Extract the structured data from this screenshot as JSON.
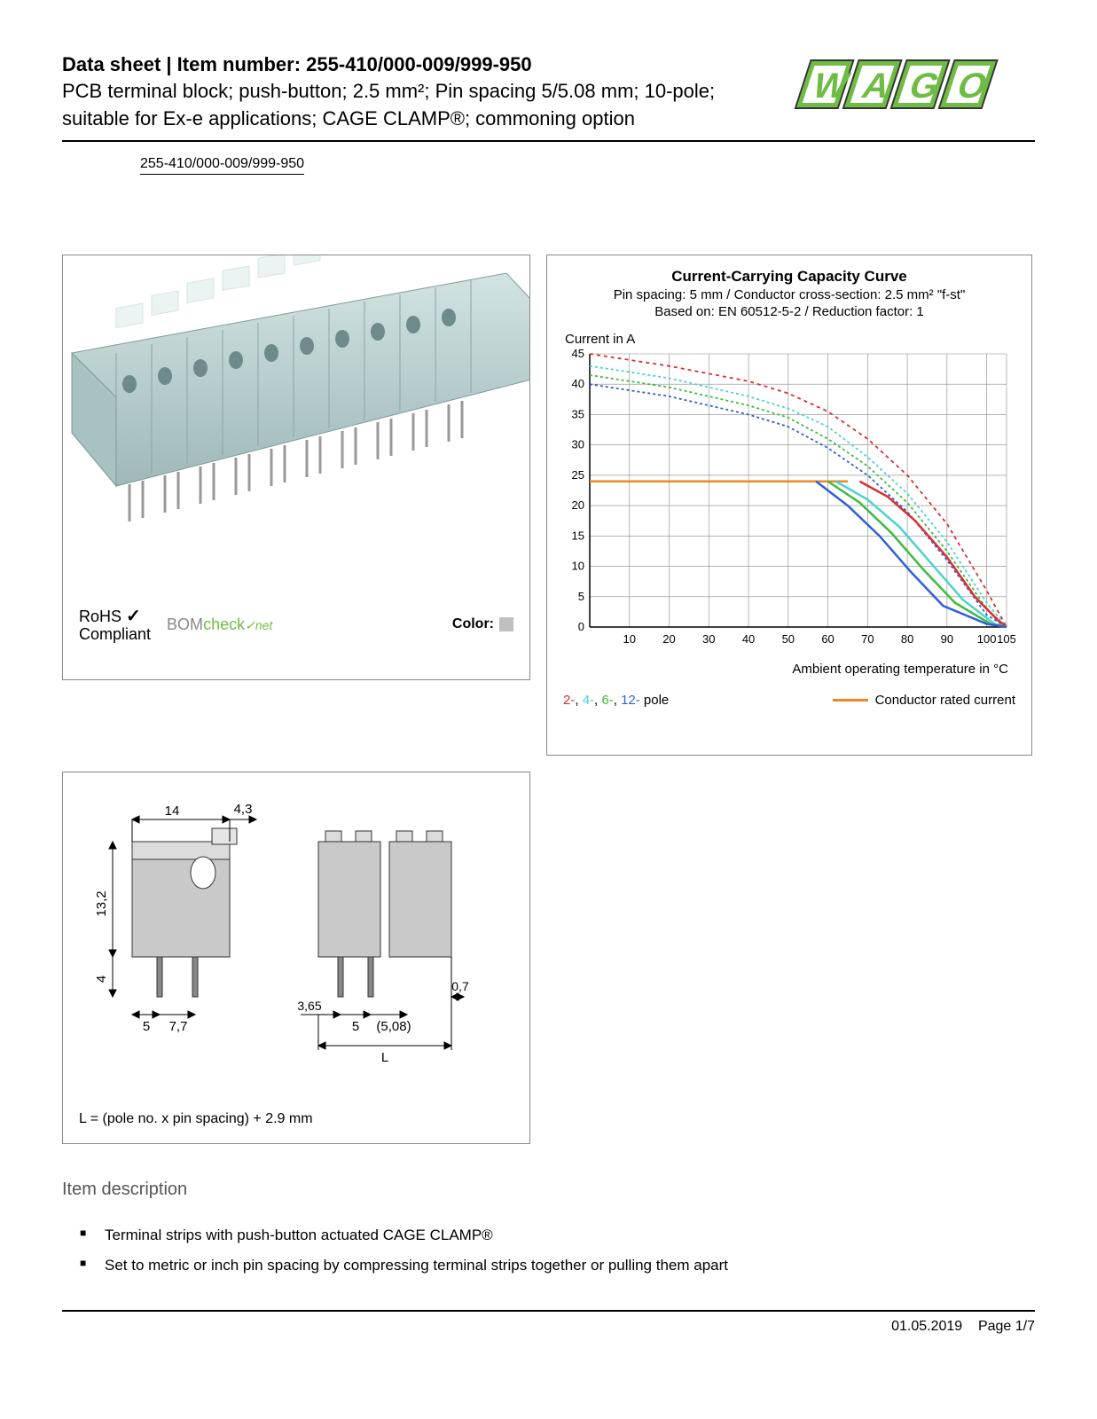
{
  "header": {
    "title_prefix": "Data sheet",
    "title_sep": "  |  ",
    "title_label": "Item number:",
    "item_number": "255-410/000-009/999-950",
    "subtitle": "PCB terminal block; push-button; 2.5 mm²; Pin spacing 5/5.08 mm; 10-pole; suitable for Ex-e applications; CAGE CLAMP®; commoning option",
    "item_badge": "255-410/000-009/999-950"
  },
  "logo": {
    "text": "WAGO",
    "fill": "#6fbc44",
    "outline": "#333333"
  },
  "product_render": {
    "body_color": "#b7cfcf",
    "top_color": "#e8f2f2",
    "pin_color": "#999999"
  },
  "compliance": {
    "rohs_line1": "RoHS",
    "rohs_line2": "Compliant",
    "check": "✓",
    "bomcheck_prefix": "BOM",
    "bomcheck_mid": "check",
    "bomcheck_suffix": "net",
    "color_label": "Color:",
    "color_swatch": "#bfbfbf"
  },
  "chart": {
    "title": "Current-Carrying Capacity Curve",
    "sub1": "Pin spacing: 5 mm / Conductor cross-section: 2.5 mm² \"f-st\"",
    "sub2": "Based on: EN 60512-5-2 / Reduction factor: 1",
    "y_label": "Current in A",
    "x_label": "Ambient operating temperature in °C",
    "x_min": 0,
    "x_max": 105,
    "y_min": 0,
    "y_max": 45,
    "x_ticks": [
      10,
      20,
      30,
      40,
      50,
      60,
      70,
      80,
      90,
      100,
      105
    ],
    "y_ticks": [
      0,
      5,
      10,
      15,
      20,
      25,
      30,
      35,
      40,
      45
    ],
    "grid_color": "#888888",
    "axis_color": "#000000",
    "rated_current_value": 24,
    "rated_current_color": "#ee8822",
    "series": [
      {
        "name": "2-pole",
        "color": "#d92f2f",
        "dash": "4 4",
        "points": [
          [
            0,
            45
          ],
          [
            20,
            43
          ],
          [
            40,
            40.5
          ],
          [
            50,
            38.5
          ],
          [
            60,
            35.5
          ],
          [
            70,
            31
          ],
          [
            80,
            25
          ],
          [
            90,
            17
          ],
          [
            100,
            6
          ],
          [
            105,
            0
          ]
        ]
      },
      {
        "name": "4-pole",
        "color": "#4dd2d2",
        "dash": "3 3",
        "points": [
          [
            0,
            43
          ],
          [
            20,
            41
          ],
          [
            40,
            38
          ],
          [
            50,
            36
          ],
          [
            60,
            33
          ],
          [
            70,
            28
          ],
          [
            80,
            22
          ],
          [
            90,
            14
          ],
          [
            100,
            4
          ],
          [
            105,
            0
          ]
        ]
      },
      {
        "name": "6-pole",
        "color": "#3fbb3f",
        "dash": "3 3",
        "points": [
          [
            0,
            41.5
          ],
          [
            20,
            39.5
          ],
          [
            40,
            36.5
          ],
          [
            50,
            34.5
          ],
          [
            60,
            31
          ],
          [
            70,
            26.5
          ],
          [
            80,
            20.5
          ],
          [
            90,
            12.5
          ],
          [
            100,
            3
          ],
          [
            105,
            0
          ]
        ]
      },
      {
        "name": "12-pole",
        "color": "#2f5fd9",
        "dash": "3 3",
        "points": [
          [
            0,
            40
          ],
          [
            20,
            38
          ],
          [
            40,
            35
          ],
          [
            50,
            33
          ],
          [
            60,
            29.5
          ],
          [
            70,
            25
          ],
          [
            80,
            19
          ],
          [
            90,
            11
          ],
          [
            100,
            2
          ],
          [
            105,
            0
          ]
        ]
      }
    ],
    "solid_series": [
      {
        "name": "2-pole-solid",
        "color": "#d92f2f",
        "points": [
          [
            68,
            24
          ],
          [
            75,
            21.5
          ],
          [
            82,
            17.5
          ],
          [
            90,
            11.5
          ],
          [
            97,
            5
          ],
          [
            103,
            1
          ],
          [
            105,
            0
          ]
        ]
      },
      {
        "name": "4-pole-solid",
        "color": "#4dd2d2",
        "points": [
          [
            62,
            24
          ],
          [
            70,
            21
          ],
          [
            78,
            16.5
          ],
          [
            86,
            10.5
          ],
          [
            94,
            4.5
          ],
          [
            102,
            0.5
          ],
          [
            105,
            0
          ]
        ]
      },
      {
        "name": "6-pole-solid",
        "color": "#3fbb3f",
        "points": [
          [
            60,
            24
          ],
          [
            68,
            20.5
          ],
          [
            76,
            15.5
          ],
          [
            84,
            9.5
          ],
          [
            92,
            4
          ],
          [
            101,
            0.5
          ],
          [
            105,
            0
          ]
        ]
      },
      {
        "name": "12-pole-solid",
        "color": "#2f5fd9",
        "points": [
          [
            57,
            24
          ],
          [
            65,
            20
          ],
          [
            73,
            15
          ],
          [
            81,
            9
          ],
          [
            89,
            3.5
          ],
          [
            100,
            0.5
          ],
          [
            105,
            0
          ]
        ]
      }
    ],
    "legend": {
      "poles_prefix": [
        "2-",
        "4-",
        "6-",
        "12-"
      ],
      "poles_suffix": " pole",
      "rated_label": "Conductor rated current"
    }
  },
  "dimensions": {
    "body_fill": "#c9c9c9",
    "body_stroke": "#333333",
    "labels": {
      "w14": "14",
      "w43": "4,3",
      "h132": "13,2",
      "h4": "4",
      "s5": "5",
      "s77": "7,7",
      "s365": "3,65",
      "s5b": "5",
      "s508": "(5,08)",
      "s07": "0,7",
      "L": "L"
    },
    "formula": "L = (pole no. x pin spacing) + 2.9 mm"
  },
  "description": {
    "heading": "Item description",
    "bullets": [
      "Terminal strips with push-button actuated CAGE CLAMP®",
      "Set to metric or inch pin spacing by compressing terminal strips together or pulling them apart"
    ]
  },
  "footer": {
    "date": "01.05.2019",
    "page": "Page 1/7"
  }
}
